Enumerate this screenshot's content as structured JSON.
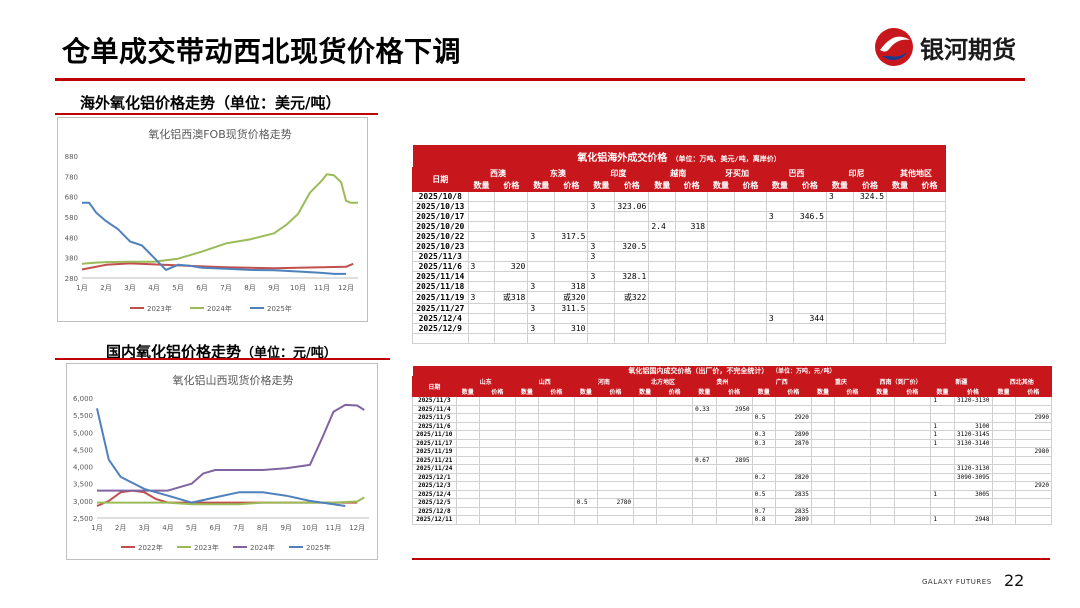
{
  "header": {
    "title": "仓单成交带动西北现货价格下调",
    "brand": "银河期货"
  },
  "colors": {
    "accent": "#c00000",
    "table_header": "#c8161d"
  },
  "sections": {
    "overseas_title": "海外氧化铝价格走势（单位：美元/吨）",
    "domestic_title": "国内氧化铝价格走势",
    "domestic_unit": "（单位：元/吨）"
  },
  "chart_data": [
    {
      "type": "line",
      "title": "氧化铝西澳FOB现货价格走势",
      "categories": [
        "1月",
        "2月",
        "3月",
        "4月",
        "5月",
        "6月",
        "7月",
        "8月",
        "9月",
        "10月",
        "11月",
        "12月"
      ],
      "ylim": [
        280,
        880
      ],
      "yticks": [
        280,
        380,
        480,
        580,
        680,
        780,
        880
      ],
      "grid": false,
      "legend": "bottom",
      "series": [
        {
          "name": "2023年",
          "color": "#c0504d",
          "x": [
            1,
            2,
            3,
            4,
            5,
            6,
            7,
            8,
            9,
            10,
            11,
            12,
            12.3
          ],
          "values": [
            322,
            345,
            352,
            347,
            342,
            337,
            333,
            330,
            328,
            330,
            333,
            335,
            350
          ]
        },
        {
          "name": "2024年",
          "color": "#9bbb59",
          "x": [
            1,
            1.5,
            2,
            3,
            4,
            5,
            6,
            7,
            8,
            9,
            9.5,
            10,
            10.5,
            11,
            11.2,
            11.5,
            11.8,
            12,
            12.2,
            12.5
          ],
          "values": [
            350,
            355,
            358,
            360,
            360,
            375,
            410,
            450,
            470,
            500,
            540,
            595,
            700,
            760,
            790,
            785,
            750,
            660,
            650,
            650
          ]
        },
        {
          "name": "2025年",
          "color": "#4f81bd",
          "x": [
            1,
            1.3,
            1.6,
            2,
            2.5,
            3,
            3.5,
            4,
            4.5,
            5,
            5.5,
            6,
            7,
            8,
            9,
            10,
            11,
            11.5,
            12
          ],
          "values": [
            650,
            650,
            600,
            560,
            520,
            460,
            440,
            380,
            320,
            345,
            340,
            330,
            325,
            320,
            318,
            312,
            305,
            300,
            300
          ]
        }
      ]
    },
    {
      "type": "line",
      "title": "氧化铝山西现货价格走势",
      "categories": [
        "1月",
        "2月",
        "3月",
        "4月",
        "5月",
        "6月",
        "7月",
        "8月",
        "9月",
        "10月",
        "11月",
        "12月"
      ],
      "ylim": [
        2500,
        6000
      ],
      "yticks": [
        2500,
        3000,
        3500,
        4000,
        4500,
        5000,
        5500,
        6000
      ],
      "ytick_labels": [
        "2,500",
        "3,000",
        "3,500",
        "4,000",
        "4,500",
        "5,000",
        "5,500",
        "6,000"
      ],
      "grid": false,
      "legend": "bottom",
      "series": [
        {
          "name": "2022年",
          "color": "#c0504d",
          "x": [
            1,
            1.5,
            2,
            2.5,
            3,
            3.5,
            4,
            5,
            6,
            7,
            8,
            9,
            10,
            11,
            12
          ],
          "values": [
            2850,
            3000,
            3250,
            3300,
            3250,
            3050,
            2950,
            2950,
            2950,
            2950,
            2950,
            2950,
            2950,
            2950,
            2950
          ]
        },
        {
          "name": "2023年",
          "color": "#9bbb59",
          "x": [
            1,
            2,
            3,
            4,
            5,
            6,
            7,
            8,
            9,
            10,
            11,
            12,
            12.3
          ],
          "values": [
            2950,
            2950,
            2950,
            2950,
            2900,
            2900,
            2900,
            2950,
            2950,
            2950,
            2950,
            2980,
            3100
          ]
        },
        {
          "name": "2024年",
          "color": "#8064a2",
          "x": [
            1,
            2,
            3,
            4,
            5,
            5.5,
            6,
            7,
            8,
            9,
            10,
            10.5,
            11,
            11.5,
            12,
            12.3
          ],
          "values": [
            3300,
            3300,
            3300,
            3300,
            3500,
            3800,
            3900,
            3900,
            3900,
            3950,
            4050,
            4800,
            5600,
            5800,
            5780,
            5650
          ]
        },
        {
          "name": "2025年",
          "color": "#4f81bd",
          "x": [
            1,
            1.2,
            1.5,
            2,
            3,
            4,
            5,
            6,
            7,
            8,
            9,
            10,
            11,
            11.5
          ],
          "values": [
            5700,
            5100,
            4200,
            3700,
            3350,
            3150,
            2950,
            3100,
            3250,
            3250,
            3150,
            3000,
            2900,
            2850
          ]
        }
      ]
    },
    {
      "type": "table",
      "title": "氧化铝海外成交价格",
      "unit": "（单位：万吨、美元/吨，离岸价）",
      "date_header": "日期",
      "regions": [
        "西澳",
        "东澳",
        "印度",
        "越南",
        "牙买加",
        "巴西",
        "印尼",
        "其他地区"
      ],
      "sub_headers": [
        "数量",
        "价格"
      ],
      "rows": [
        {
          "date": "2025/10/8",
          "cells": [
            "",
            "",
            "",
            "",
            "",
            "",
            "",
            "",
            "",
            "",
            "",
            "",
            "3",
            "324.5",
            "",
            ""
          ]
        },
        {
          "date": "2025/10/13",
          "cells": [
            "",
            "",
            "",
            "",
            "3",
            "323.06",
            "",
            "",
            "",
            "",
            "",
            "",
            "",
            "",
            "",
            ""
          ]
        },
        {
          "date": "2025/10/17",
          "cells": [
            "",
            "",
            "",
            "",
            "",
            "",
            "",
            "",
            "",
            "",
            "3",
            "346.5",
            "",
            "",
            "",
            ""
          ]
        },
        {
          "date": "2025/10/20",
          "cells": [
            "",
            "",
            "",
            "",
            "",
            "",
            "2.4",
            "318",
            "",
            "",
            "",
            "",
            "",
            "",
            "",
            ""
          ]
        },
        {
          "date": "2025/10/22",
          "cells": [
            "",
            "",
            "3",
            "317.5",
            "",
            "",
            "",
            "",
            "",
            "",
            "",
            "",
            "",
            "",
            "",
            ""
          ]
        },
        {
          "date": "2025/10/23",
          "cells": [
            "",
            "",
            "",
            "",
            "3",
            "320.5",
            "",
            "",
            "",
            "",
            "",
            "",
            "",
            "",
            "",
            ""
          ]
        },
        {
          "date": "2025/11/3",
          "cells": [
            "",
            "",
            "",
            "",
            "3",
            "",
            "",
            "",
            "",
            "",
            "",
            "",
            "",
            "",
            "",
            ""
          ]
        },
        {
          "date": "2025/11/6",
          "cells": [
            "3",
            "320",
            "",
            "",
            "",
            "",
            "",
            "",
            "",
            "",
            "",
            "",
            "",
            "",
            "",
            ""
          ]
        },
        {
          "date": "2025/11/14",
          "cells": [
            "",
            "",
            "",
            "",
            "3",
            "328.1",
            "",
            "",
            "",
            "",
            "",
            "",
            "",
            "",
            "",
            ""
          ]
        },
        {
          "date": "2025/11/18",
          "cells": [
            "",
            "",
            "3",
            "318",
            "",
            "",
            "",
            "",
            "",
            "",
            "",
            "",
            "",
            "",
            "",
            ""
          ]
        },
        {
          "date": "2025/11/19",
          "cells": [
            "3",
            "或318",
            "",
            "或320",
            "",
            "或322",
            "",
            "",
            "",
            "",
            "",
            "",
            "",
            "",
            "",
            ""
          ]
        },
        {
          "date": "2025/11/27",
          "cells": [
            "",
            "",
            "3",
            "311.5",
            "",
            "",
            "",
            "",
            "",
            "",
            "",
            "",
            "",
            "",
            "",
            ""
          ]
        },
        {
          "date": "2025/12/4",
          "cells": [
            "",
            "",
            "",
            "",
            "",
            "",
            "",
            "",
            "",
            "",
            "3",
            "344",
            "",
            "",
            "",
            ""
          ]
        },
        {
          "date": "2025/12/9",
          "cells": [
            "",
            "",
            "3",
            "310",
            "",
            "",
            "",
            "",
            "",
            "",
            "",
            "",
            "",
            "",
            "",
            ""
          ]
        }
      ]
    },
    {
      "type": "table",
      "title": "氧化铝国内成交价格（出厂价，不完全统计）",
      "unit": "（单位：万吨，元/吨）",
      "date_header": "日期",
      "regions": [
        "山东",
        "山西",
        "河南",
        "北方地区",
        "贵州",
        "广西",
        "重庆",
        "西南（到厂价）",
        "新疆",
        "西北其他"
      ],
      "sub_headers": [
        "数量",
        "价格"
      ],
      "rows": [
        {
          "date": "2025/11/3",
          "cells": [
            "",
            "",
            "",
            "",
            "",
            "",
            "",
            "",
            "",
            "",
            "",
            "",
            "",
            "",
            "",
            "",
            "1",
            "3120-3130",
            "",
            ""
          ]
        },
        {
          "date": "2025/11/4",
          "cells": [
            "",
            "",
            "",
            "",
            "",
            "",
            "",
            "",
            "0.33",
            "2950",
            "",
            "",
            "",
            "",
            "",
            "",
            "",
            "",
            "",
            ""
          ]
        },
        {
          "date": "2025/11/5",
          "cells": [
            "",
            "",
            "",
            "",
            "",
            "",
            "",
            "",
            "",
            "",
            "0.5",
            "2920",
            "",
            "",
            "",
            "",
            "",
            "",
            "",
            "2990"
          ]
        },
        {
          "date": "2025/11/6",
          "cells": [
            "",
            "",
            "",
            "",
            "",
            "",
            "",
            "",
            "",
            "",
            "",
            "",
            "",
            "",
            "",
            "",
            "1",
            "3100",
            "",
            ""
          ]
        },
        {
          "date": "2025/11/10",
          "cells": [
            "",
            "",
            "",
            "",
            "",
            "",
            "",
            "",
            "",
            "",
            "0.3",
            "2890",
            "",
            "",
            "",
            "",
            "1",
            "3120-3145",
            "",
            ""
          ]
        },
        {
          "date": "2025/11/17",
          "cells": [
            "",
            "",
            "",
            "",
            "",
            "",
            "",
            "",
            "",
            "",
            "0.3",
            "2870",
            "",
            "",
            "",
            "",
            "1",
            "3130-3140",
            "",
            ""
          ]
        },
        {
          "date": "2025/11/19",
          "cells": [
            "",
            "",
            "",
            "",
            "",
            "",
            "",
            "",
            "",
            "",
            "",
            "",
            "",
            "",
            "",
            "",
            "",
            "",
            "",
            "2980"
          ]
        },
        {
          "date": "2025/11/21",
          "cells": [
            "",
            "",
            "",
            "",
            "",
            "",
            "",
            "",
            "0.67",
            "2895",
            "",
            "",
            "",
            "",
            "",
            "",
            "",
            "",
            "",
            ""
          ]
        },
        {
          "date": "2025/11/24",
          "cells": [
            "",
            "",
            "",
            "",
            "",
            "",
            "",
            "",
            "",
            "",
            "",
            "",
            "",
            "",
            "",
            "",
            "",
            "3120-3130",
            "",
            ""
          ]
        },
        {
          "date": "2025/12/1",
          "cells": [
            "",
            "",
            "",
            "",
            "",
            "",
            "",
            "",
            "",
            "",
            "0.2",
            "2820",
            "",
            "",
            "",
            "",
            "",
            "3090-3095",
            "",
            ""
          ]
        },
        {
          "date": "2025/12/3",
          "cells": [
            "",
            "",
            "",
            "",
            "",
            "",
            "",
            "",
            "",
            "",
            "",
            "",
            "",
            "",
            "",
            "",
            "",
            "",
            "",
            "2920"
          ]
        },
        {
          "date": "2025/12/4",
          "cells": [
            "",
            "",
            "",
            "",
            "",
            "",
            "",
            "",
            "",
            "",
            "0.5",
            "2835",
            "",
            "",
            "",
            "",
            "1",
            "3005",
            "",
            ""
          ]
        },
        {
          "date": "2025/12/5",
          "cells": [
            "",
            "",
            "",
            "",
            "0.5",
            "2780",
            "",
            "",
            "",
            "",
            "",
            "",
            "",
            "",
            "",
            "",
            "",
            "",
            "",
            ""
          ]
        },
        {
          "date": "2025/12/8",
          "cells": [
            "",
            "",
            "",
            "",
            "",
            "",
            "",
            "",
            "",
            "",
            "0.7",
            "2835",
            "",
            "",
            "",
            "",
            "",
            "",
            "",
            ""
          ]
        },
        {
          "date": "2025/12/11",
          "cells": [
            "",
            "",
            "",
            "",
            "",
            "",
            "",
            "",
            "",
            "",
            "0.8",
            "2809",
            "",
            "",
            "",
            "",
            "1",
            "2948",
            "",
            ""
          ]
        }
      ]
    }
  ],
  "footer": {
    "brand_en": "GALAXY FUTURES",
    "page": "22"
  }
}
